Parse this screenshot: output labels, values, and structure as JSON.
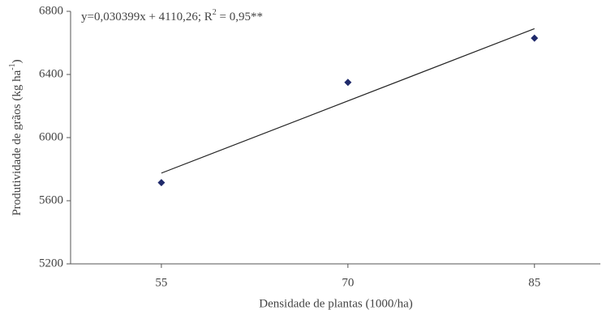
{
  "chart_data": {
    "type": "scatter",
    "annotation": {
      "text": "y=0,030399x + 4110,26; R",
      "sup": "2",
      "text_end": " = 0,95**"
    },
    "xlabel": "Densidade de plantas (1000/ha)",
    "ylabel": {
      "text": "Produtividade de grãos (kg ha",
      "sup": "-1",
      "text_end": ")"
    },
    "x": [
      55,
      70,
      85
    ],
    "series": [
      {
        "color": "#1f2a6b",
        "values": [
          5715,
          6350,
          6630
        ]
      }
    ],
    "trendline": {
      "x": [
        55,
        85
      ],
      "values": [
        5775,
        6690
      ],
      "color": "#222"
    },
    "xlim": [
      47.7,
      90.3
    ],
    "xticks": [
      55,
      70,
      85
    ],
    "ylim": [
      5200,
      6800
    ],
    "yticks": [
      5200,
      5600,
      6000,
      6400,
      6800
    ]
  }
}
